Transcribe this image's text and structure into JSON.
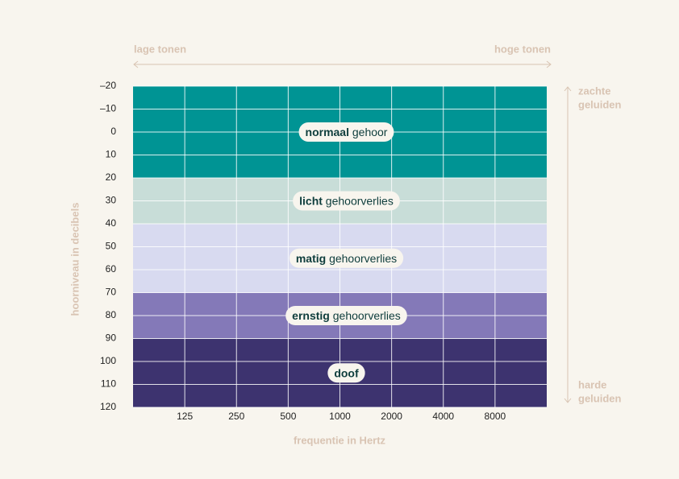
{
  "chart_data": {
    "type": "bands",
    "y_label": "hoorniveau in decibels",
    "x_label": "frequentie in Hertz",
    "left_annotation": "lage tonen",
    "right_annotation": "hoge tonen",
    "top_annotation": [
      "zachte",
      "geluiden"
    ],
    "bottom_annotation": [
      "harde",
      "geluiden"
    ],
    "ylim": [
      -20,
      120
    ],
    "yticks": [
      {
        "value": -20,
        "label": "–20"
      },
      {
        "value": -10,
        "label": "–10"
      },
      0,
      10,
      20,
      30,
      40,
      50,
      60,
      70,
      80,
      90,
      100,
      110,
      120
    ],
    "y_inverted": true,
    "xlim": [
      62.5,
      16000
    ],
    "xticks": [
      125,
      250,
      500,
      1000,
      2000,
      4000,
      8000
    ],
    "x_log": true,
    "grid": true,
    "bands": [
      {
        "strong": "normaal",
        "text": "gehoor",
        "from": -20,
        "to": 20,
        "color": "#009494"
      },
      {
        "strong": "licht",
        "text": "gehoorverlies",
        "from": 20,
        "to": 40,
        "color": "#c8ddd8"
      },
      {
        "strong": "matig",
        "text": "gehoorverlies",
        "from": 40,
        "to": 70,
        "color": "#d8daf0"
      },
      {
        "strong": "ernstig",
        "text": "gehoorverlies",
        "from": 70,
        "to": 90,
        "color": "#8479b8"
      },
      {
        "strong": "doof",
        "text": "",
        "from": 90,
        "to": 120,
        "color": "#3d336f"
      }
    ]
  }
}
